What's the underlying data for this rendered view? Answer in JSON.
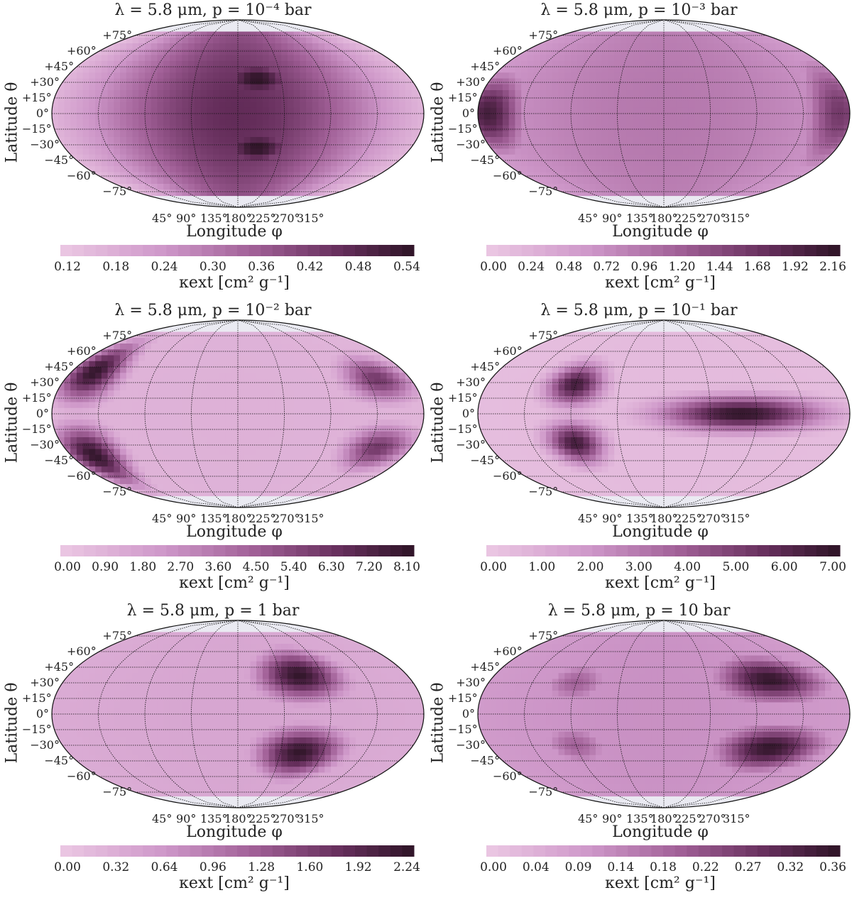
{
  "chart_data": [
    {
      "type": "heatmap",
      "title": "λ = 5.8 μm, p = 10⁻⁴ bar",
      "xlabel": "Longitude φ",
      "ylabel": "Latitude θ",
      "colorbar_label": "κext [cm² g⁻¹]",
      "lat_ticks": [
        "+75°",
        "+60°",
        "+45°",
        "+30°",
        "+15°",
        "0°",
        "−15°",
        "−30°",
        "−45°",
        "−60°",
        "−75°"
      ],
      "lon_ticks": [
        "45°",
        "90°",
        "135°",
        "180°",
        "225°",
        "270°",
        "315°"
      ],
      "colorbar_ticks": [
        "0.12",
        "0.18",
        "0.24",
        "0.30",
        "0.36",
        "0.42",
        "0.48",
        "0.54"
      ],
      "range": [
        0.1,
        0.57
      ],
      "blobs": [
        {
          "lon": 180,
          "lat": 0,
          "value": 0.48,
          "slon": 120,
          "slat": 120
        },
        {
          "lon": 200,
          "lat": 33,
          "value": 0.57,
          "slon": 35,
          "slat": 16
        },
        {
          "lon": 200,
          "lat": -33,
          "value": 0.57,
          "slon": 35,
          "slat": 16
        },
        {
          "lon": 180,
          "lat": 0,
          "value": 0.1,
          "slon": 500,
          "slat": 500
        }
      ]
    },
    {
      "type": "heatmap",
      "title": "λ = 5.8 μm, p = 10⁻³ bar",
      "xlabel": "Longitude φ",
      "ylabel": "Latitude θ",
      "colorbar_label": "κext [cm² g⁻¹]",
      "lat_ticks": [
        "+75°",
        "+60°",
        "+45°",
        "+30°",
        "+15°",
        "0°",
        "−15°",
        "−30°",
        "−45°",
        "−60°",
        "−75°"
      ],
      "lon_ticks": [
        "45°",
        "90°",
        "135°",
        "180°",
        "225°",
        "270°",
        "315°"
      ],
      "colorbar_ticks": [
        "0.00",
        "0.24",
        "0.48",
        "0.72",
        "0.96",
        "1.20",
        "1.44",
        "1.68",
        "1.92",
        "2.16"
      ],
      "range": [
        0,
        2.3
      ],
      "blobs": [
        {
          "lon": 180,
          "lat": 0,
          "value": 1.0,
          "slon": 200,
          "slat": 200
        },
        {
          "lon": 10,
          "lat": 0,
          "value": 2.1,
          "slon": 25,
          "slat": 28
        },
        {
          "lon": 350,
          "lat": 0,
          "value": 1.7,
          "slon": 25,
          "slat": 40
        }
      ]
    },
    {
      "type": "heatmap",
      "title": "λ = 5.8 μm, p = 10⁻² bar",
      "xlabel": "Longitude φ",
      "ylabel": "Latitude θ",
      "colorbar_label": "κext [cm² g⁻¹]",
      "lat_ticks": [
        "+75°",
        "+60°",
        "+45°",
        "+30°",
        "+15°",
        "0°",
        "−15°",
        "−30°",
        "−45°",
        "−60°",
        "−75°"
      ],
      "lon_ticks": [
        "45°",
        "90°",
        "135°",
        "180°",
        "225°",
        "270°",
        "315°"
      ],
      "colorbar_ticks": [
        "0.00",
        "0.90",
        "1.80",
        "2.70",
        "3.60",
        "4.50",
        "5.40",
        "6.30",
        "7.20",
        "8.10"
      ],
      "range": [
        0,
        8.8
      ],
      "blobs": [
        {
          "lon": 180,
          "lat": 0,
          "value": 1.2,
          "slon": 300,
          "slat": 300
        },
        {
          "lon": 25,
          "lat": 40,
          "value": 8.6,
          "slon": 22,
          "slat": 20
        },
        {
          "lon": 25,
          "lat": -40,
          "value": 8.6,
          "slon": 22,
          "slat": 20
        },
        {
          "lon": 325,
          "lat": 33,
          "value": 6.5,
          "slon": 25,
          "slat": 15
        },
        {
          "lon": 325,
          "lat": -33,
          "value": 6.5,
          "slon": 25,
          "slat": 15
        }
      ]
    },
    {
      "type": "heatmap",
      "title": "λ = 5.8 μm, p = 10⁻¹ bar",
      "xlabel": "Longitude φ",
      "ylabel": "Latitude θ",
      "colorbar_label": "κext [cm² g⁻¹]",
      "lat_ticks": [
        "+75°",
        "+60°",
        "+45°",
        "+30°",
        "+15°",
        "0°",
        "−15°",
        "−30°",
        "−45°",
        "−60°",
        "−75°"
      ],
      "lon_ticks": [
        "45°",
        "90°",
        "135°",
        "180°",
        "225°",
        "270°",
        "315°"
      ],
      "colorbar_ticks": [
        "0.00",
        "1.00",
        "2.00",
        "3.00",
        "4.00",
        "5.00",
        "6.00",
        "7.00"
      ],
      "range": [
        0,
        7.6
      ],
      "blobs": [
        {
          "lon": 180,
          "lat": 0,
          "value": 0.6,
          "slon": 300,
          "slat": 300
        },
        {
          "lon": 90,
          "lat": 28,
          "value": 7.0,
          "slon": 20,
          "slat": 14
        },
        {
          "lon": 90,
          "lat": -28,
          "value": 7.0,
          "slon": 20,
          "slat": 14
        },
        {
          "lon": 255,
          "lat": 0,
          "value": 7.5,
          "slon": 55,
          "slat": 12
        }
      ]
    },
    {
      "type": "heatmap",
      "title": "λ = 5.8 μm, p = 1 bar",
      "xlabel": "Longitude φ",
      "ylabel": "Latitude θ",
      "colorbar_label": "κext [cm² g⁻¹]",
      "lat_ticks": [
        "+75°",
        "+60°",
        "+45°",
        "+30°",
        "+15°",
        "0°",
        "−15°",
        "−30°",
        "−45°",
        "−60°",
        "−75°"
      ],
      "lon_ticks": [
        "45°",
        "90°",
        "135°",
        "180°",
        "225°",
        "270°",
        "315°"
      ],
      "colorbar_ticks": [
        "0.00",
        "0.32",
        "0.64",
        "0.96",
        "1.28",
        "1.60",
        "1.92",
        "2.24"
      ],
      "range": [
        0,
        2.45
      ],
      "blobs": [
        {
          "lon": 180,
          "lat": 0,
          "value": 0.5,
          "slon": 300,
          "slat": 300
        },
        {
          "lon": 245,
          "lat": 37,
          "value": 2.4,
          "slon": 32,
          "slat": 17
        },
        {
          "lon": 245,
          "lat": -37,
          "value": 2.4,
          "slon": 32,
          "slat": 17
        }
      ]
    },
    {
      "type": "heatmap",
      "title": "λ = 5.8 μm, p = 10 bar",
      "xlabel": "Longitude φ",
      "ylabel": "Latitude θ",
      "colorbar_label": "κext [cm² g⁻¹]",
      "lat_ticks": [
        "+75°",
        "+60°",
        "+45°",
        "+30°",
        "+15°",
        "0°",
        "−15°",
        "−30°",
        "−45°",
        "−60°",
        "−75°"
      ],
      "lon_ticks": [
        "45°",
        "90°",
        "135°",
        "180°",
        "225°",
        "270°",
        "315°"
      ],
      "colorbar_ticks": [
        "0.00",
        "0.04",
        "0.09",
        "0.14",
        "0.18",
        "0.22",
        "0.27",
        "0.32",
        "0.36"
      ],
      "range": [
        0,
        0.37
      ],
      "blobs": [
        {
          "lon": 180,
          "lat": 0,
          "value": 0.12,
          "slon": 300,
          "slat": 300
        },
        {
          "lon": 90,
          "lat": 30,
          "value": 0.2,
          "slon": 25,
          "slat": 15
        },
        {
          "lon": 90,
          "lat": -30,
          "value": 0.2,
          "slon": 25,
          "slat": 15
        },
        {
          "lon": 290,
          "lat": 33,
          "value": 0.36,
          "slon": 40,
          "slat": 16
        },
        {
          "lon": 290,
          "lat": -33,
          "value": 0.36,
          "slon": 40,
          "slat": 16
        }
      ]
    }
  ]
}
